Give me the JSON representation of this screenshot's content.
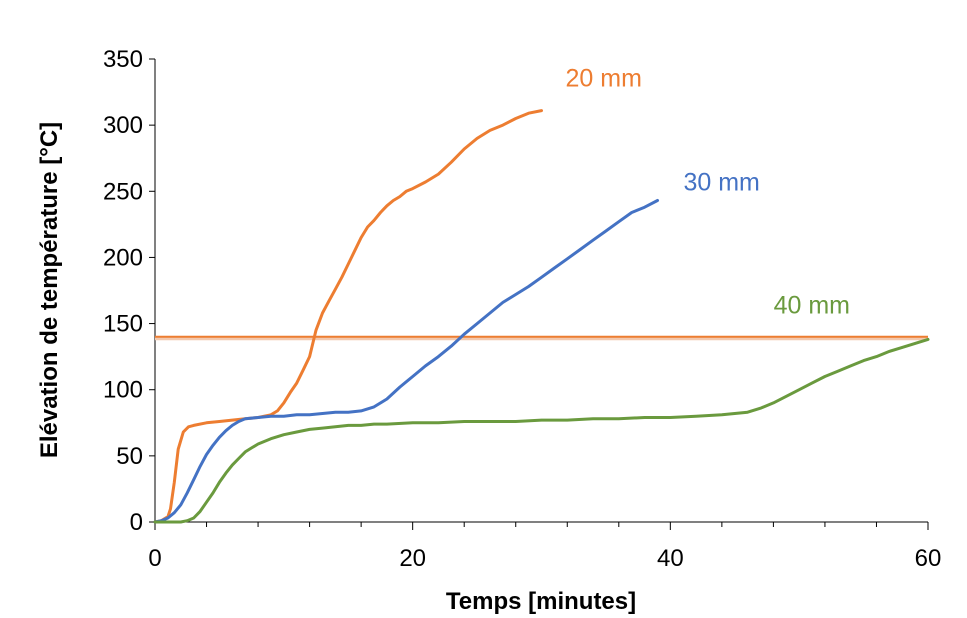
{
  "chart_data": {
    "type": "line",
    "title": "",
    "xlabel": "Temps [minutes]",
    "ylabel": "Elévation  de température [°C]",
    "xlim": [
      0,
      60
    ],
    "ylim": [
      0,
      350
    ],
    "xticks": [
      0,
      20,
      40,
      60
    ],
    "yticks": [
      0,
      50,
      100,
      150,
      200,
      250,
      300,
      350
    ],
    "x_minor_step": 4,
    "grid": false,
    "legend": "none",
    "reference_line": {
      "y": 140,
      "color": "#ed7d31"
    },
    "series": [
      {
        "name": "20 mm",
        "color": "#ed7d31",
        "points": [
          [
            0,
            0
          ],
          [
            0.5,
            1
          ],
          [
            1,
            4
          ],
          [
            1.2,
            10
          ],
          [
            1.5,
            30
          ],
          [
            1.8,
            55
          ],
          [
            2.2,
            68
          ],
          [
            2.6,
            72
          ],
          [
            3,
            73
          ],
          [
            4,
            75
          ],
          [
            5,
            76
          ],
          [
            6,
            77
          ],
          [
            7,
            78
          ],
          [
            8,
            79
          ],
          [
            9,
            81
          ],
          [
            9.5,
            84
          ],
          [
            10,
            90
          ],
          [
            10.5,
            98
          ],
          [
            11,
            105
          ],
          [
            11.5,
            115
          ],
          [
            12,
            125
          ],
          [
            12.5,
            145
          ],
          [
            13,
            158
          ],
          [
            13.5,
            167
          ],
          [
            14,
            176
          ],
          [
            14.5,
            185
          ],
          [
            15,
            195
          ],
          [
            15.5,
            205
          ],
          [
            16,
            215
          ],
          [
            16.5,
            223
          ],
          [
            17,
            228
          ],
          [
            17.5,
            234
          ],
          [
            18,
            239
          ],
          [
            18.5,
            243
          ],
          [
            19,
            246
          ],
          [
            19.5,
            250
          ],
          [
            20,
            252
          ],
          [
            21,
            257
          ],
          [
            22,
            263
          ],
          [
            23,
            272
          ],
          [
            24,
            282
          ],
          [
            25,
            290
          ],
          [
            26,
            296
          ],
          [
            27,
            300
          ],
          [
            28,
            305
          ],
          [
            29,
            309
          ],
          [
            30,
            311
          ]
        ]
      },
      {
        "name": "30 mm",
        "color": "#4472c4",
        "points": [
          [
            0,
            0
          ],
          [
            0.5,
            1
          ],
          [
            1,
            3
          ],
          [
            1.5,
            7
          ],
          [
            2,
            13
          ],
          [
            2.5,
            22
          ],
          [
            3,
            32
          ],
          [
            3.5,
            42
          ],
          [
            4,
            51
          ],
          [
            4.5,
            58
          ],
          [
            5,
            64
          ],
          [
            5.5,
            69
          ],
          [
            6,
            73
          ],
          [
            6.5,
            76
          ],
          [
            7,
            78
          ],
          [
            8,
            79
          ],
          [
            9,
            80
          ],
          [
            10,
            80
          ],
          [
            11,
            81
          ],
          [
            12,
            81
          ],
          [
            13,
            82
          ],
          [
            14,
            83
          ],
          [
            15,
            83
          ],
          [
            16,
            84
          ],
          [
            17,
            87
          ],
          [
            18,
            93
          ],
          [
            19,
            102
          ],
          [
            20,
            110
          ],
          [
            21,
            118
          ],
          [
            22,
            125
          ],
          [
            23,
            133
          ],
          [
            24,
            142
          ],
          [
            25,
            150
          ],
          [
            26,
            158
          ],
          [
            27,
            166
          ],
          [
            28,
            172
          ],
          [
            29,
            178
          ],
          [
            30,
            185
          ],
          [
            31,
            192
          ],
          [
            32,
            199
          ],
          [
            33,
            206
          ],
          [
            34,
            213
          ],
          [
            35,
            220
          ],
          [
            36,
            227
          ],
          [
            37,
            234
          ],
          [
            38,
            238
          ],
          [
            39,
            243
          ]
        ]
      },
      {
        "name": "40 mm",
        "color": "#6a9a3e",
        "points": [
          [
            0,
            0
          ],
          [
            1,
            0
          ],
          [
            2,
            0
          ],
          [
            2.5,
            1
          ],
          [
            3,
            3
          ],
          [
            3.5,
            8
          ],
          [
            4,
            15
          ],
          [
            4.5,
            22
          ],
          [
            5,
            30
          ],
          [
            5.5,
            37
          ],
          [
            6,
            43
          ],
          [
            6.5,
            48
          ],
          [
            7,
            53
          ],
          [
            7.5,
            56
          ],
          [
            8,
            59
          ],
          [
            9,
            63
          ],
          [
            10,
            66
          ],
          [
            11,
            68
          ],
          [
            12,
            70
          ],
          [
            13,
            71
          ],
          [
            14,
            72
          ],
          [
            15,
            73
          ],
          [
            16,
            73
          ],
          [
            17,
            74
          ],
          [
            18,
            74
          ],
          [
            20,
            75
          ],
          [
            22,
            75
          ],
          [
            24,
            76
          ],
          [
            26,
            76
          ],
          [
            28,
            76
          ],
          [
            30,
            77
          ],
          [
            32,
            77
          ],
          [
            34,
            78
          ],
          [
            36,
            78
          ],
          [
            38,
            79
          ],
          [
            40,
            79
          ],
          [
            42,
            80
          ],
          [
            44,
            81
          ],
          [
            46,
            83
          ],
          [
            47,
            86
          ],
          [
            48,
            90
          ],
          [
            49,
            95
          ],
          [
            50,
            100
          ],
          [
            51,
            105
          ],
          [
            52,
            110
          ],
          [
            53,
            114
          ],
          [
            54,
            118
          ],
          [
            55,
            122
          ],
          [
            56,
            125
          ],
          [
            57,
            129
          ],
          [
            58,
            132
          ],
          [
            59,
            135
          ],
          [
            60,
            138
          ]
        ]
      }
    ]
  }
}
